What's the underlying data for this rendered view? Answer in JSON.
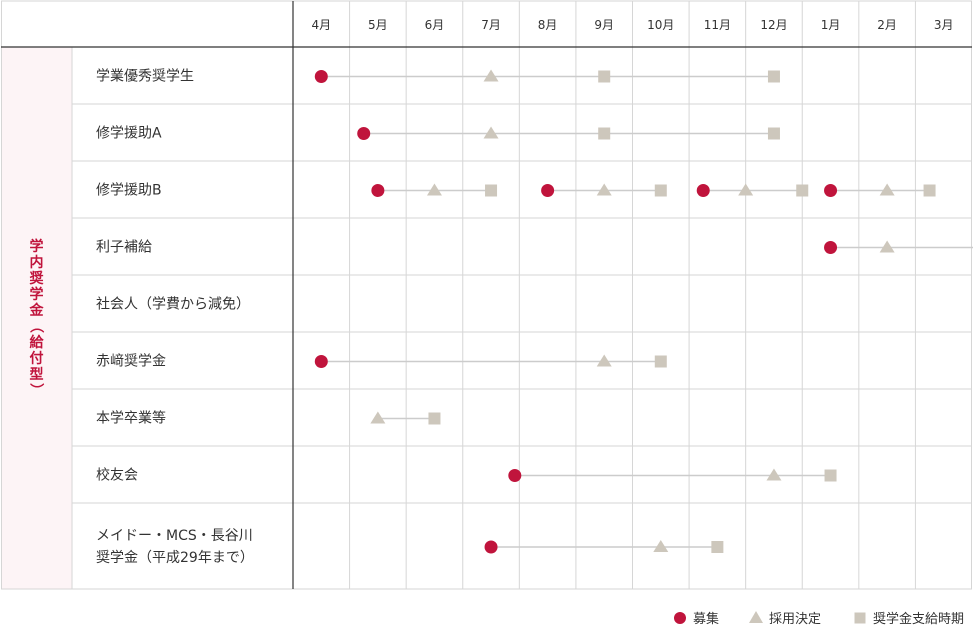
{
  "chart_data": {
    "type": "table",
    "group_label": "学内奨学金（給付型）",
    "months": [
      "4月",
      "5月",
      "6月",
      "7月",
      "8月",
      "9月",
      "10月",
      "11月",
      "12月",
      "1月",
      "2月",
      "3月"
    ],
    "legend": [
      {
        "key": "recruit",
        "label": "募集",
        "shape": "circle"
      },
      {
        "key": "decision",
        "label": "採用決定",
        "shape": "triangle"
      },
      {
        "key": "payment",
        "label": "奨学金支給時期",
        "shape": "square"
      }
    ],
    "colors": {
      "recruit": "#c0143c",
      "marker_gray": "#cdc7bc",
      "line": "#cccccc",
      "grid": "#d6d6d6",
      "border": "#333333",
      "group_bg": "#fdf4f6",
      "group_text": "#c0143c"
    },
    "rows": [
      {
        "label_lines": [
          "学業優秀奨学生"
        ],
        "segments": [
          {
            "recruit": 0.0,
            "decision": 3.0,
            "payment": 5.0,
            "end": 8.0
          }
        ]
      },
      {
        "label_lines": [
          "修学援助A"
        ],
        "segments": [
          {
            "recruit": 0.75,
            "decision": 3.0,
            "payment": 5.0,
            "end": 8.0
          }
        ]
      },
      {
        "label_lines": [
          "修学援助B"
        ],
        "segments": [
          {
            "recruit": 1.0,
            "decision": 2.0,
            "payment": 3.0,
            "end": 3.0
          },
          {
            "recruit": 4.0,
            "decision": 5.0,
            "payment": 6.0,
            "end": 6.0
          },
          {
            "recruit": 6.75,
            "decision": 7.5,
            "payment": 8.5,
            "end": 8.5
          },
          {
            "recruit": 9.0,
            "decision": 10.0,
            "payment": 10.75,
            "end": 10.75
          }
        ]
      },
      {
        "label_lines": [
          "利子補給"
        ],
        "segments": [
          {
            "recruit": 9.0,
            "decision": 10.0,
            "payment": 11.75,
            "end": 11.75
          }
        ]
      },
      {
        "label_lines": [
          "社会人（学費から減免）"
        ],
        "segments": []
      },
      {
        "label_lines": [
          "赤﨑奨学金"
        ],
        "segments": [
          {
            "recruit": 0.0,
            "decision": 5.0,
            "payment": 6.0,
            "end": 6.0
          }
        ]
      },
      {
        "label_lines": [
          "本学卒業等"
        ],
        "segments": [
          {
            "recruit": null,
            "decision": 1.0,
            "payment": 2.0,
            "end": 2.0
          }
        ]
      },
      {
        "label_lines": [
          "校友会"
        ],
        "segments": [
          {
            "recruit": 3.42,
            "decision": 8.0,
            "payment": 9.0,
            "end": 9.0
          }
        ]
      },
      {
        "label_lines": [
          "メイドー・MCS・長谷川",
          "奨学金（平成29年まで）"
        ],
        "segments": [
          {
            "recruit": 3.0,
            "decision": 6.0,
            "payment": 7.0,
            "end": 7.0
          }
        ]
      }
    ]
  }
}
